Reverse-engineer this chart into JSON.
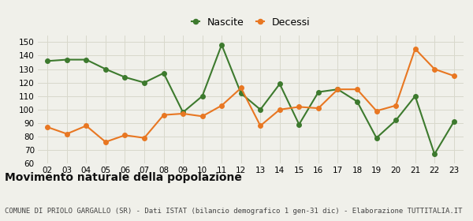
{
  "years": [
    "02",
    "03",
    "04",
    "05",
    "06",
    "07",
    "08",
    "09",
    "10",
    "11",
    "12",
    "13",
    "14",
    "15",
    "16",
    "17",
    "18",
    "19",
    "20",
    "21",
    "22",
    "23"
  ],
  "nascite": [
    136,
    137,
    137,
    130,
    124,
    120,
    127,
    98,
    110,
    148,
    112,
    100,
    119,
    89,
    113,
    115,
    106,
    79,
    92,
    110,
    67,
    91
  ],
  "decessi": [
    87,
    82,
    88,
    76,
    81,
    79,
    96,
    97,
    95,
    103,
    116,
    88,
    100,
    102,
    101,
    115,
    115,
    99,
    103,
    145,
    130,
    125
  ],
  "nascite_color": "#3d7a2e",
  "decessi_color": "#e87722",
  "bg_color": "#f0f0ea",
  "grid_color": "#d8d8cc",
  "title": "Movimento naturale della popolazione",
  "subtitle": "COMUNE DI PRIOLO GARGALLO (SR) - Dati ISTAT (bilancio demografico 1 gen-31 dic) - Elaborazione TUTTITALIA.IT",
  "legend_nascite": "Nascite",
  "legend_decessi": "Decessi",
  "ylim": [
    60,
    155
  ],
  "yticks": [
    60,
    70,
    80,
    90,
    100,
    110,
    120,
    130,
    140,
    150
  ],
  "marker_size": 4,
  "line_width": 1.5,
  "title_fontsize": 10,
  "subtitle_fontsize": 6.5,
  "legend_fontsize": 9,
  "tick_fontsize": 7.5
}
